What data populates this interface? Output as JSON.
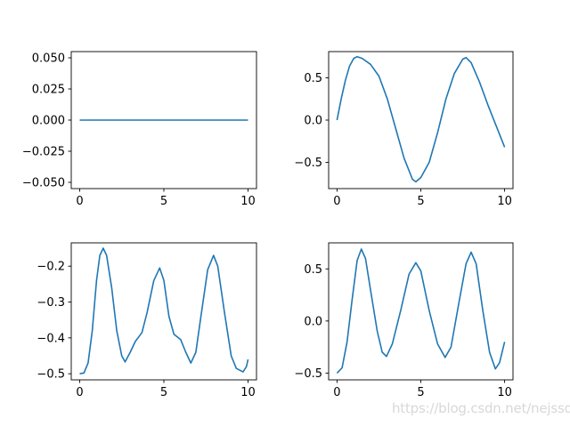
{
  "watermark": "https://blog.csdn.net/nejssd",
  "line_color": "#1f77b4",
  "chart_data": [
    {
      "type": "line",
      "position": "top-left",
      "xlim": [
        -0.5,
        10.5
      ],
      "ylim": [
        -0.055,
        0.055
      ],
      "xticks": [
        0,
        5,
        10
      ],
      "xtick_labels": [
        "0",
        "5",
        "10"
      ],
      "yticks": [
        -0.05,
        -0.025,
        0,
        0.025,
        0.05
      ],
      "ytick_labels": [
        "−0.050",
        "−0.025",
        "0.000",
        "0.025",
        "0.050"
      ],
      "x": [
        0,
        10
      ],
      "y": [
        0,
        0
      ]
    },
    {
      "type": "line",
      "position": "top-right",
      "xlim": [
        -0.5,
        10.5
      ],
      "ylim": [
        -0.81,
        0.81
      ],
      "xticks": [
        0,
        5,
        10
      ],
      "xtick_labels": [
        "0",
        "5",
        "10"
      ],
      "yticks": [
        -0.5,
        0,
        0.5
      ],
      "ytick_labels": [
        "−0.5",
        "0.0",
        "0.5"
      ],
      "x": [
        0,
        0.25,
        0.5,
        0.75,
        1.0,
        1.2,
        1.5,
        2,
        2.5,
        3,
        3.5,
        4,
        4.5,
        4.7,
        5,
        5.5,
        6,
        6.5,
        7,
        7.5,
        7.7,
        8,
        8.5,
        9,
        9.5,
        10
      ],
      "y": [
        0,
        0.25,
        0.47,
        0.64,
        0.73,
        0.75,
        0.73,
        0.66,
        0.52,
        0.25,
        -0.1,
        -0.45,
        -0.7,
        -0.73,
        -0.68,
        -0.5,
        -0.15,
        0.25,
        0.55,
        0.72,
        0.74,
        0.68,
        0.45,
        0.18,
        -0.07,
        -0.32
      ]
    },
    {
      "type": "line",
      "position": "bottom-left",
      "xlim": [
        -0.5,
        10.5
      ],
      "ylim": [
        -0.517,
        -0.135
      ],
      "xticks": [
        0,
        5,
        10
      ],
      "xtick_labels": [
        "0",
        "5",
        "10"
      ],
      "yticks": [
        -0.5,
        -0.4,
        -0.3,
        -0.2
      ],
      "ytick_labels": [
        "−0.5",
        "−0.4",
        "−0.3",
        "−0.2"
      ],
      "x": [
        0,
        0.25,
        0.5,
        0.75,
        1.0,
        1.2,
        1.4,
        1.6,
        1.9,
        2.2,
        2.5,
        2.7,
        3,
        3.3,
        3.7,
        4,
        4.4,
        4.75,
        5.0,
        5.3,
        5.6,
        6,
        6.3,
        6.6,
        6.9,
        7.2,
        7.6,
        7.95,
        8.2,
        8.6,
        9,
        9.3,
        9.7,
        9.9,
        10
      ],
      "y": [
        -0.5,
        -0.498,
        -0.47,
        -0.38,
        -0.24,
        -0.17,
        -0.15,
        -0.17,
        -0.26,
        -0.38,
        -0.45,
        -0.467,
        -0.44,
        -0.41,
        -0.385,
        -0.33,
        -0.24,
        -0.205,
        -0.24,
        -0.34,
        -0.39,
        -0.405,
        -0.44,
        -0.47,
        -0.44,
        -0.34,
        -0.21,
        -0.17,
        -0.2,
        -0.33,
        -0.45,
        -0.485,
        -0.495,
        -0.48,
        -0.46
      ]
    },
    {
      "type": "line",
      "position": "bottom-right",
      "xlim": [
        -0.5,
        10.5
      ],
      "ylim": [
        -0.565,
        0.75
      ],
      "xticks": [
        0,
        5,
        10
      ],
      "xtick_labels": [
        "0",
        "5",
        "10"
      ],
      "yticks": [
        -0.5,
        0,
        0.5
      ],
      "ytick_labels": [
        "−0.5",
        "0.0",
        "0.5"
      ],
      "x": [
        0,
        0.3,
        0.6,
        0.9,
        1.2,
        1.45,
        1.7,
        2,
        2.4,
        2.7,
        2.95,
        3.3,
        3.8,
        4.3,
        4.7,
        5.0,
        5.5,
        6,
        6.45,
        6.8,
        7.3,
        7.7,
        8.0,
        8.3,
        8.7,
        9.1,
        9.45,
        9.7,
        10
      ],
      "y": [
        -0.5,
        -0.45,
        -0.2,
        0.2,
        0.58,
        0.69,
        0.6,
        0.3,
        -0.1,
        -0.3,
        -0.34,
        -0.22,
        0.1,
        0.45,
        0.56,
        0.48,
        0.1,
        -0.22,
        -0.35,
        -0.25,
        0.2,
        0.55,
        0.66,
        0.55,
        0.1,
        -0.3,
        -0.46,
        -0.4,
        -0.2
      ]
    }
  ]
}
